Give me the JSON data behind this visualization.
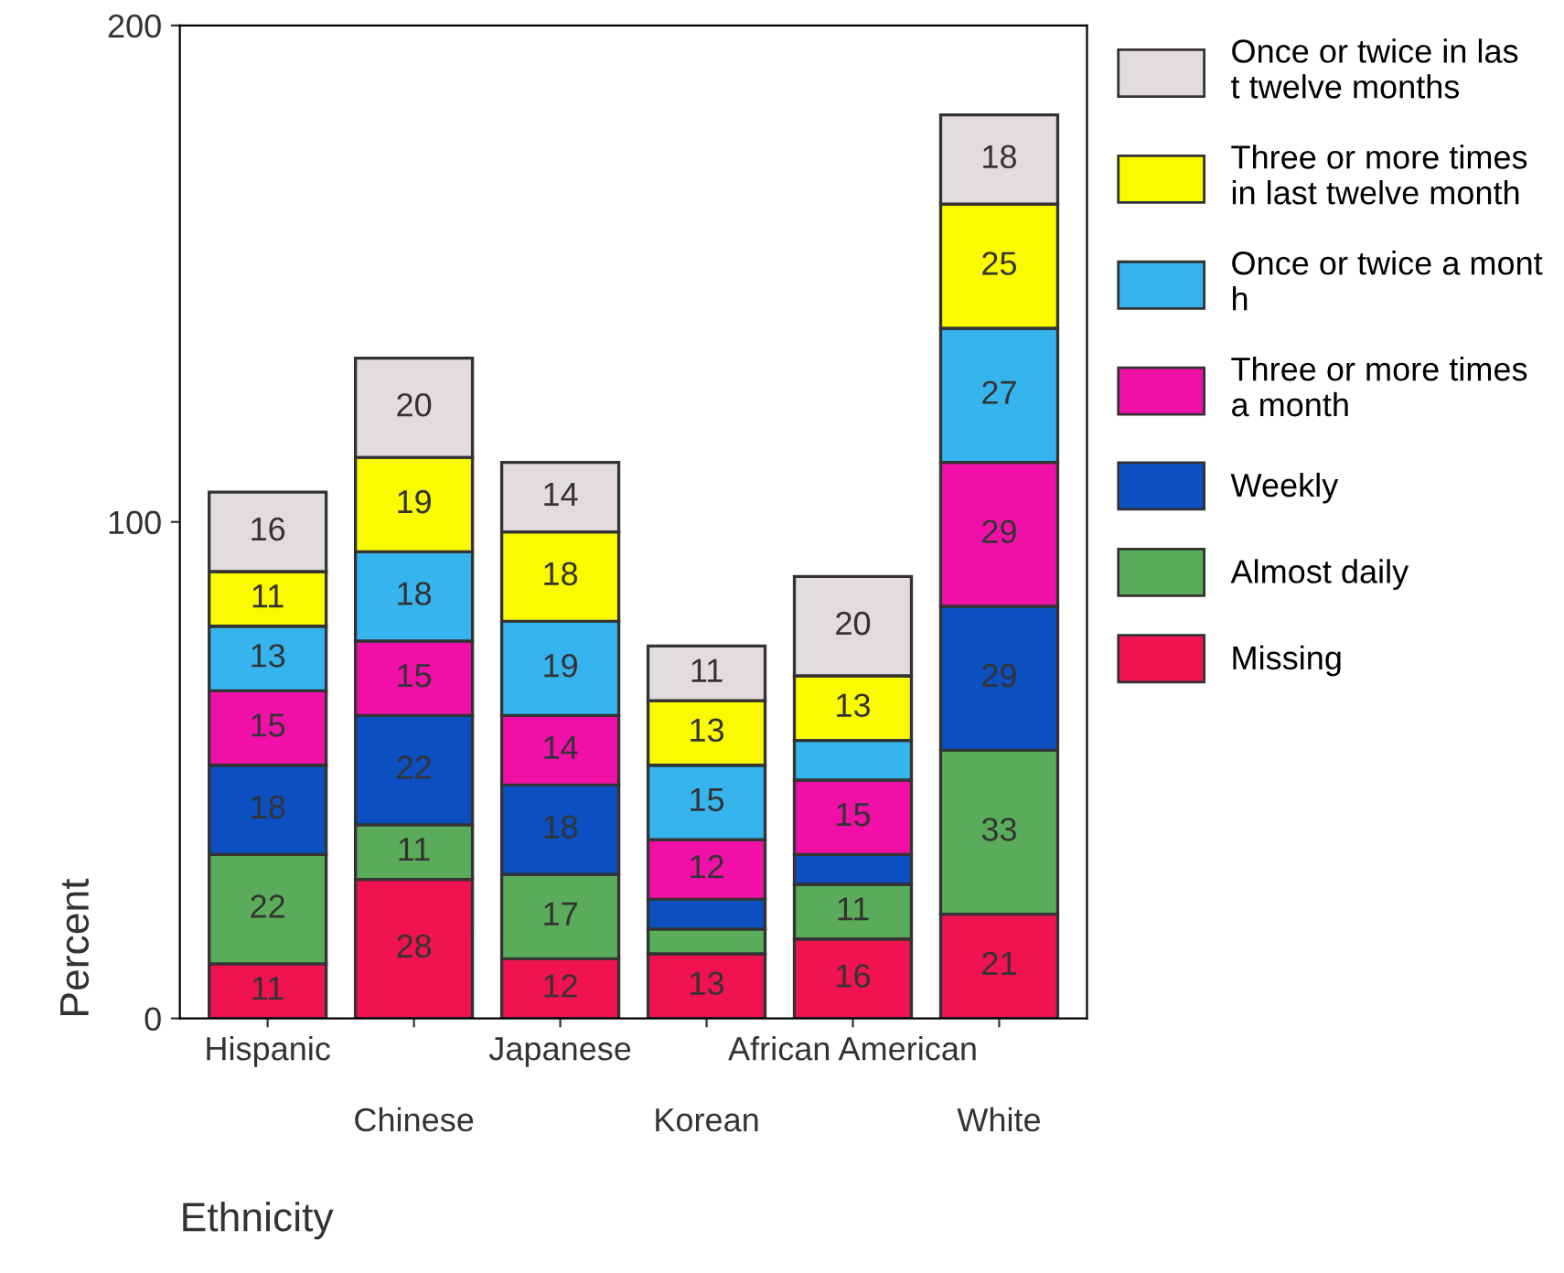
{
  "chart_data": {
    "type": "bar",
    "stacked": true,
    "xlabel": "Ethnicity",
    "ylabel": "Percent",
    "categories": [
      "Hispanic",
      "Chinese",
      "Japanese",
      "Korean",
      "African American",
      "White"
    ],
    "ylim": [
      0,
      200
    ],
    "yticks": [
      0,
      100,
      200
    ],
    "grid": false,
    "legend": "right",
    "series": [
      {
        "name": "Missing",
        "color": "#f0134f",
        "values": [
          11,
          28,
          12,
          13,
          16,
          21
        ],
        "value_labels": [
          "11",
          "28",
          "12",
          "13",
          "16",
          "21"
        ]
      },
      {
        "name": "Almost daily",
        "color": "#5aac5a",
        "values": [
          22,
          11,
          17,
          5,
          11,
          33
        ],
        "value_labels": [
          "22",
          "11",
          "17",
          null,
          "11",
          "33"
        ]
      },
      {
        "name": "Weekly",
        "color": "#0b4fc0",
        "values": [
          18,
          22,
          18,
          6,
          6,
          29
        ],
        "value_labels": [
          "18",
          "22",
          "18",
          null,
          null,
          "29"
        ]
      },
      {
        "name": "Three or more times\na month",
        "color": "#f010a8",
        "values": [
          15,
          15,
          14,
          12,
          15,
          29
        ],
        "value_labels": [
          "15",
          "15",
          "14",
          "12",
          "15",
          "29"
        ]
      },
      {
        "name": "Once or twice a mont\nh",
        "color": "#36b4ee",
        "values": [
          13,
          18,
          19,
          15,
          8,
          27
        ],
        "value_labels": [
          "13",
          "18",
          "19",
          "15",
          null,
          "27"
        ]
      },
      {
        "name": "Three or more times\nin last twelve month",
        "color": "#fafa00",
        "values": [
          11,
          19,
          18,
          13,
          13,
          25
        ],
        "value_labels": [
          "11",
          "19",
          "18",
          "13",
          "13",
          "25"
        ]
      },
      {
        "name": "Once or twice in las\nt twelve months",
        "color": "#e2dcdf",
        "values": [
          16,
          20,
          14,
          11,
          20,
          18
        ],
        "value_labels": [
          "16",
          "20",
          "14",
          "11",
          "20",
          "18"
        ]
      }
    ]
  }
}
